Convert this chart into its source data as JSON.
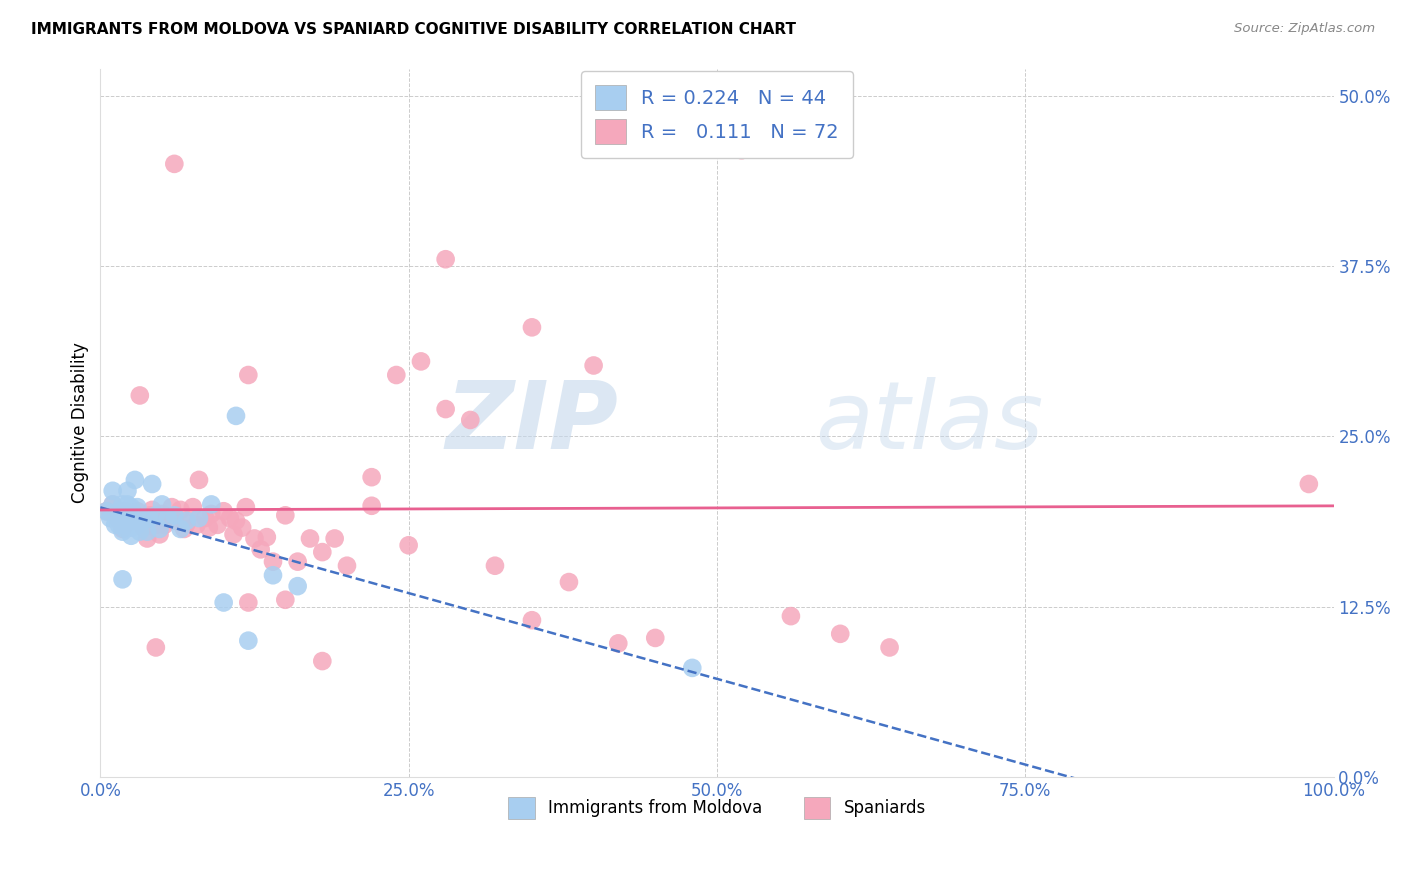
{
  "title": "IMMIGRANTS FROM MOLDOVA VS SPANIARD COGNITIVE DISABILITY CORRELATION CHART",
  "source": "Source: ZipAtlas.com",
  "ylabel": "Cognitive Disability",
  "xlim": [
    0.0,
    1.0
  ],
  "ylim": [
    0.0,
    0.52
  ],
  "yticks": [
    0.0,
    0.125,
    0.25,
    0.375,
    0.5
  ],
  "ytick_labels": [
    "0.0%",
    "12.5%",
    "25.0%",
    "37.5%",
    "50.0%"
  ],
  "xticks": [
    0.0,
    0.25,
    0.5,
    0.75,
    1.0
  ],
  "xtick_labels": [
    "0.0%",
    "25.0%",
    "50.0%",
    "75.0%",
    "100.0%"
  ],
  "blue_R": 0.224,
  "blue_N": 44,
  "pink_R": 0.111,
  "pink_N": 72,
  "blue_label": "Immigrants from Moldova",
  "pink_label": "Spaniards",
  "blue_color": "#A8CEF0",
  "pink_color": "#F5A8BC",
  "blue_line_color": "#4472C4",
  "pink_line_color": "#E86090",
  "watermark_zip": "ZIP",
  "watermark_atlas": "atlas",
  "blue_x": [
    0.005,
    0.008,
    0.01,
    0.01,
    0.012,
    0.015,
    0.015,
    0.018,
    0.018,
    0.018,
    0.02,
    0.02,
    0.02,
    0.022,
    0.022,
    0.025,
    0.025,
    0.025,
    0.025,
    0.028,
    0.028,
    0.03,
    0.03,
    0.032,
    0.035,
    0.038,
    0.04,
    0.042,
    0.045,
    0.048,
    0.05,
    0.055,
    0.06,
    0.065,
    0.07,
    0.08,
    0.09,
    0.1,
    0.11,
    0.12,
    0.14,
    0.16,
    0.48,
    0.018
  ],
  "blue_y": [
    0.195,
    0.19,
    0.2,
    0.21,
    0.185,
    0.195,
    0.185,
    0.2,
    0.192,
    0.18,
    0.195,
    0.188,
    0.182,
    0.2,
    0.21,
    0.198,
    0.19,
    0.183,
    0.177,
    0.218,
    0.188,
    0.198,
    0.185,
    0.18,
    0.188,
    0.18,
    0.19,
    0.215,
    0.192,
    0.182,
    0.2,
    0.19,
    0.192,
    0.182,
    0.188,
    0.19,
    0.2,
    0.128,
    0.265,
    0.1,
    0.148,
    0.14,
    0.08,
    0.145
  ],
  "pink_x": [
    0.005,
    0.01,
    0.015,
    0.018,
    0.02,
    0.025,
    0.028,
    0.03,
    0.032,
    0.035,
    0.038,
    0.04,
    0.042,
    0.045,
    0.048,
    0.05,
    0.052,
    0.055,
    0.058,
    0.06,
    0.065,
    0.068,
    0.07,
    0.075,
    0.078,
    0.08,
    0.085,
    0.088,
    0.09,
    0.095,
    0.1,
    0.105,
    0.108,
    0.11,
    0.115,
    0.118,
    0.12,
    0.125,
    0.13,
    0.135,
    0.14,
    0.15,
    0.16,
    0.17,
    0.18,
    0.19,
    0.2,
    0.22,
    0.24,
    0.26,
    0.28,
    0.3,
    0.32,
    0.35,
    0.38,
    0.42,
    0.45,
    0.52,
    0.56,
    0.6,
    0.64,
    0.15,
    0.28,
    0.35,
    0.4,
    0.22,
    0.18,
    0.25,
    0.06,
    0.98,
    0.12,
    0.045
  ],
  "pink_y": [
    0.195,
    0.2,
    0.188,
    0.182,
    0.195,
    0.188,
    0.192,
    0.195,
    0.28,
    0.183,
    0.175,
    0.192,
    0.196,
    0.185,
    0.178,
    0.193,
    0.185,
    0.19,
    0.198,
    0.188,
    0.196,
    0.182,
    0.186,
    0.198,
    0.185,
    0.218,
    0.19,
    0.183,
    0.193,
    0.185,
    0.195,
    0.19,
    0.178,
    0.188,
    0.183,
    0.198,
    0.128,
    0.175,
    0.167,
    0.176,
    0.158,
    0.192,
    0.158,
    0.175,
    0.165,
    0.175,
    0.155,
    0.199,
    0.295,
    0.305,
    0.27,
    0.262,
    0.155,
    0.115,
    0.143,
    0.098,
    0.102,
    0.46,
    0.118,
    0.105,
    0.095,
    0.13,
    0.38,
    0.33,
    0.302,
    0.22,
    0.085,
    0.17,
    0.45,
    0.215,
    0.295,
    0.095
  ]
}
